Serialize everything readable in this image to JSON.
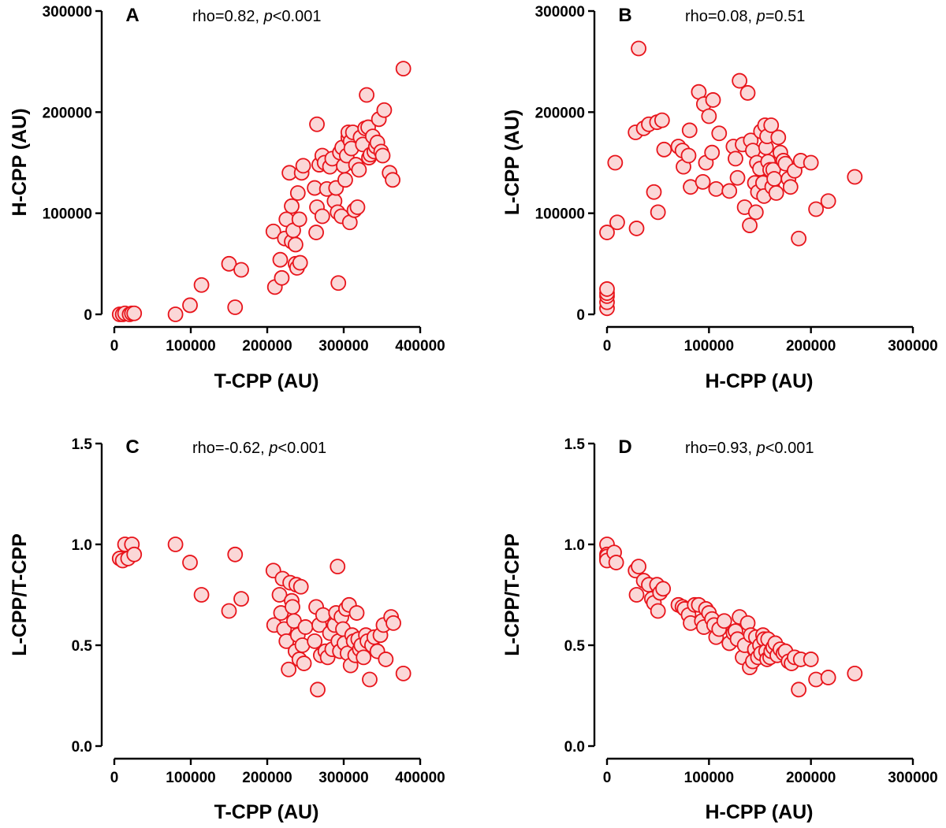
{
  "chart_data": [
    {
      "panel": "A",
      "type": "scatter",
      "stat": {
        "prefix": "rho=0.82, ",
        "p_symbol": "p",
        "suffix": "<0.001"
      },
      "xlabel": "T-CPP (AU)",
      "ylabel": "H-CPP (AU)",
      "xlim": [
        0,
        400000
      ],
      "ylim": [
        0,
        300000
      ],
      "xticks": [
        0,
        100000,
        200000,
        300000,
        400000
      ],
      "yticks": [
        0,
        100000,
        200000,
        300000
      ],
      "xtick_labels": [
        "0",
        "100000",
        "200000",
        "300000",
        "400000"
      ],
      "ytick_labels": [
        "0",
        "100000",
        "200000",
        "300000"
      ],
      "point_color": "#e8141b",
      "point_fill": "#fbd7d7",
      "x": [
        7000,
        11000,
        14000,
        20000,
        23000,
        26000,
        80000,
        99000,
        114000,
        150000,
        158000,
        166000,
        208000,
        210000,
        217000,
        219000,
        223000,
        225000,
        229000,
        232000,
        232000,
        234000,
        237000,
        237000,
        239000,
        240000,
        242000,
        243000,
        245000,
        247000,
        262000,
        264000,
        265000,
        265000,
        268000,
        272000,
        272000,
        275000,
        278000,
        282000,
        285000,
        288000,
        290000,
        292000,
        293000,
        295000,
        297000,
        298000,
        300000,
        302000,
        304000,
        306000,
        306000,
        308000,
        309000,
        310000,
        312000,
        314000,
        316000,
        318000,
        320000,
        322000,
        325000,
        328000,
        330000,
        332000,
        333000,
        335000,
        338000,
        340000,
        342000,
        344000,
        346000,
        349000,
        351000,
        353000,
        360000,
        364000,
        378000
      ],
      "y": [
        0,
        0,
        1000,
        0,
        1000,
        1000,
        0,
        9000,
        29000,
        50000,
        7000,
        44000,
        82000,
        27000,
        54000,
        36000,
        75000,
        94000,
        140000,
        107000,
        72000,
        83000,
        69000,
        50000,
        46000,
        120000,
        94000,
        51000,
        140000,
        147000,
        125000,
        81000,
        188000,
        106000,
        148000,
        97000,
        157000,
        150000,
        124000,
        146000,
        154000,
        112000,
        125000,
        101000,
        31000,
        160000,
        97000,
        165000,
        147000,
        133000,
        157000,
        175000,
        180000,
        91000,
        171000,
        164000,
        180000,
        103000,
        148000,
        106000,
        143000,
        175000,
        168000,
        184000,
        217000,
        185000,
        155000,
        158000,
        176000,
        161000,
        166000,
        170000,
        193000,
        161000,
        157000,
        202000,
        140000,
        133000,
        243000
      ]
    },
    {
      "panel": "B",
      "type": "scatter",
      "stat": {
        "prefix": "rho=0.08, ",
        "p_symbol": "p",
        "suffix": "=0.51"
      },
      "xlabel": "H-CPP (AU)",
      "ylabel": "L-CPP (AU)",
      "xlim": [
        0,
        300000
      ],
      "ylim": [
        0,
        300000
      ],
      "xticks": [
        0,
        100000,
        200000,
        300000
      ],
      "yticks": [
        0,
        100000,
        200000,
        300000
      ],
      "xtick_labels": [
        "0",
        "100000",
        "200000",
        "300000"
      ],
      "ytick_labels": [
        "0",
        "100000",
        "200000",
        "300000"
      ],
      "point_color": "#e8141b",
      "point_fill": "#fbd7d7",
      "x": [
        0,
        0,
        0,
        0,
        0,
        0,
        8000,
        10000,
        28000,
        29000,
        31000,
        36000,
        41000,
        46000,
        49000,
        50000,
        54000,
        56000,
        70000,
        74000,
        75000,
        80000,
        81000,
        82000,
        90000,
        94000,
        95000,
        97000,
        100000,
        103000,
        104000,
        107000,
        110000,
        120000,
        124000,
        126000,
        128000,
        130000,
        133000,
        135000,
        138000,
        140000,
        141000,
        143000,
        145000,
        146000,
        147000,
        148000,
        150000,
        151000,
        153000,
        154000,
        155000,
        156000,
        157000,
        158000,
        160000,
        161000,
        162000,
        163000,
        164000,
        166000,
        168000,
        170000,
        173000,
        175000,
        178000,
        180000,
        184000,
        188000,
        190000,
        200000,
        205000,
        217000,
        243000
      ],
      "y": [
        6000,
        12000,
        18000,
        21000,
        25000,
        81000,
        150000,
        91000,
        180000,
        85000,
        263000,
        184000,
        188000,
        121000,
        190000,
        101000,
        192000,
        163000,
        166000,
        162000,
        146000,
        157000,
        182000,
        126000,
        220000,
        131000,
        208000,
        150000,
        196000,
        160000,
        212000,
        124000,
        179000,
        122000,
        166000,
        154000,
        135000,
        231000,
        168000,
        106000,
        219000,
        88000,
        172000,
        162000,
        130000,
        101000,
        150000,
        121000,
        144000,
        181000,
        130000,
        117000,
        187000,
        165000,
        176000,
        151000,
        143000,
        187000,
        126000,
        143000,
        134000,
        120000,
        175000,
        160000,
        152000,
        149000,
        134000,
        126000,
        142000,
        75000,
        152000,
        150000,
        104000,
        112000,
        136000
      ]
    },
    {
      "panel": "C",
      "type": "scatter",
      "stat": {
        "prefix": "rho=-0.62, ",
        "p_symbol": "p",
        "suffix": "<0.001"
      },
      "xlabel": "T-CPP (AU)",
      "ylabel": "L-CPP/T-CPP",
      "xlim": [
        0,
        400000
      ],
      "ylim": [
        0,
        1.5
      ],
      "xticks": [
        0,
        100000,
        200000,
        300000,
        400000
      ],
      "yticks": [
        0,
        0.5,
        1.0,
        1.5
      ],
      "xtick_labels": [
        "0",
        "100000",
        "200000",
        "300000",
        "400000"
      ],
      "ytick_labels": [
        "0.0",
        "0.5",
        "1.0",
        "1.5"
      ],
      "point_color": "#e8141b",
      "point_fill": "#fbd7d7",
      "x": [
        7000,
        11000,
        14000,
        18000,
        23000,
        26000,
        80000,
        99000,
        114000,
        150000,
        158000,
        166000,
        208000,
        209000,
        216000,
        218000,
        220000,
        222000,
        225000,
        228000,
        230000,
        232000,
        233000,
        235000,
        237000,
        238000,
        240000,
        242000,
        244000,
        246000,
        248000,
        250000,
        262000,
        264000,
        266000,
        268000,
        270000,
        273000,
        276000,
        279000,
        282000,
        285000,
        288000,
        290000,
        292000,
        293000,
        295000,
        297000,
        299000,
        301000,
        303000,
        305000,
        307000,
        309000,
        311000,
        313000,
        315000,
        317000,
        319000,
        321000,
        323000,
        326000,
        329000,
        331000,
        334000,
        337000,
        340000,
        344000,
        348000,
        352000,
        355000,
        362000,
        365000,
        378000
      ],
      "y": [
        0.93,
        0.92,
        1.0,
        0.93,
        1.0,
        0.95,
        1.0,
        0.91,
        0.75,
        0.67,
        0.95,
        0.73,
        0.87,
        0.6,
        0.75,
        0.66,
        0.83,
        0.58,
        0.52,
        0.38,
        0.81,
        0.72,
        0.69,
        0.62,
        0.47,
        0.8,
        0.55,
        0.43,
        0.79,
        0.5,
        0.41,
        0.59,
        0.52,
        0.69,
        0.28,
        0.6,
        0.45,
        0.65,
        0.47,
        0.44,
        0.56,
        0.48,
        0.6,
        0.66,
        0.89,
        0.52,
        0.47,
        0.64,
        0.58,
        0.51,
        0.68,
        0.46,
        0.7,
        0.4,
        0.55,
        0.52,
        0.45,
        0.66,
        0.53,
        0.48,
        0.5,
        0.44,
        0.55,
        0.52,
        0.33,
        0.5,
        0.54,
        0.47,
        0.55,
        0.6,
        0.43,
        0.64,
        0.61,
        0.36
      ]
    },
    {
      "panel": "D",
      "type": "scatter",
      "stat": {
        "prefix": "rho=0.93, ",
        "p_symbol": "p",
        "suffix": "<0.001"
      },
      "xlabel": "H-CPP (AU)",
      "ylabel": "L-CPP/T-CPP",
      "xlim": [
        0,
        300000
      ],
      "ylim": [
        0,
        1.5
      ],
      "xticks": [
        0,
        100000,
        200000,
        300000
      ],
      "yticks": [
        0,
        0.5,
        1.0,
        1.5
      ],
      "xtick_labels": [
        "0",
        "100000",
        "200000",
        "300000"
      ],
      "ytick_labels": [
        "0.0",
        "0.5",
        "1.0",
        "1.5"
      ],
      "point_color": "#e8141b",
      "point_fill": "#fbd7d7",
      "x": [
        0,
        0,
        0,
        0,
        0,
        7000,
        9000,
        28000,
        29000,
        31000,
        36000,
        41000,
        44000,
        46000,
        49000,
        50000,
        52000,
        55000,
        70000,
        74000,
        76000,
        80000,
        82000,
        86000,
        90000,
        93000,
        95000,
        97000,
        100000,
        103000,
        105000,
        107000,
        110000,
        115000,
        120000,
        124000,
        126000,
        128000,
        130000,
        133000,
        135000,
        138000,
        140000,
        141000,
        143000,
        145000,
        146000,
        148000,
        150000,
        151000,
        153000,
        154000,
        156000,
        157000,
        158000,
        160000,
        161000,
        163000,
        165000,
        167000,
        170000,
        173000,
        175000,
        178000,
        181000,
        184000,
        188000,
        190000,
        200000,
        205000,
        217000,
        243000
      ],
      "y": [
        1.0,
        0.93,
        0.95,
        0.94,
        0.92,
        0.96,
        0.91,
        0.87,
        0.75,
        0.89,
        0.82,
        0.8,
        0.73,
        0.71,
        0.8,
        0.67,
        0.76,
        0.78,
        0.7,
        0.69,
        0.68,
        0.65,
        0.61,
        0.7,
        0.7,
        0.62,
        0.59,
        0.68,
        0.66,
        0.63,
        0.6,
        0.54,
        0.58,
        0.62,
        0.51,
        0.56,
        0.57,
        0.53,
        0.64,
        0.44,
        0.5,
        0.61,
        0.39,
        0.55,
        0.42,
        0.48,
        0.54,
        0.44,
        0.5,
        0.46,
        0.55,
        0.53,
        0.47,
        0.43,
        0.53,
        0.44,
        0.47,
        0.49,
        0.51,
        0.45,
        0.48,
        0.46,
        0.47,
        0.42,
        0.41,
        0.44,
        0.28,
        0.43,
        0.43,
        0.33,
        0.34,
        0.36
      ]
    }
  ]
}
